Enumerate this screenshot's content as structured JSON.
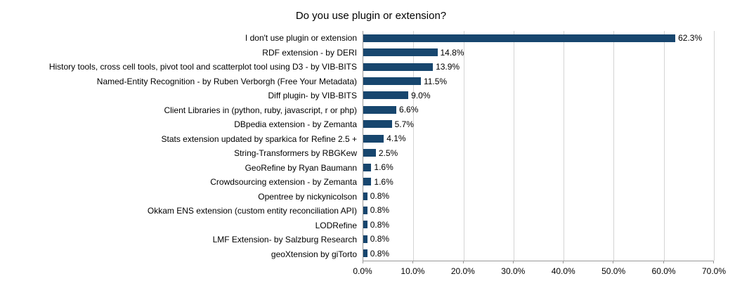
{
  "chart_data": {
    "type": "bar",
    "orientation": "horizontal",
    "title": "Do you use plugin or extension?",
    "categories": [
      "I don't use plugin or extension",
      "RDF extension - by DERI",
      "History tools, cross cell tools, pivot tool and scatterplot tool using D3 - by VIB-BITS",
      "Named-Entity Recognition - by Ruben Verborgh (Free Your Metadata)",
      "Diff plugin- by VIB-BITS",
      "Client Libraries in (python, ruby, javascript, r or php)",
      "DBpedia extension - by Zemanta",
      "Stats extension updated by sparkica for Refine 2.5 +",
      "String-Transformers by RBGKew",
      "GeoRefine by Ryan Baumann",
      "Crowdsourcing extension - by Zemanta",
      "Opentree by nickynicolson",
      "Okkam ENS extension (custom entity reconciliation API)",
      "LODRefine",
      "LMF Extension- by Salzburg Research",
      "geoXtension by giTorto"
    ],
    "values": [
      62.3,
      14.8,
      13.9,
      11.5,
      9.0,
      6.6,
      5.7,
      4.1,
      2.5,
      1.6,
      1.6,
      0.8,
      0.8,
      0.8,
      0.8,
      0.8
    ],
    "value_suffix": "%",
    "xlabel": "",
    "ylabel": "",
    "xlim": [
      0,
      70
    ],
    "x_tick_labels": [
      "0.0%",
      "10.0%",
      "20.0%",
      "30.0%",
      "40.0%",
      "50.0%",
      "60.0%",
      "70.0%"
    ],
    "bar_color": "#17466e",
    "grid": true,
    "legend_position": "none"
  }
}
